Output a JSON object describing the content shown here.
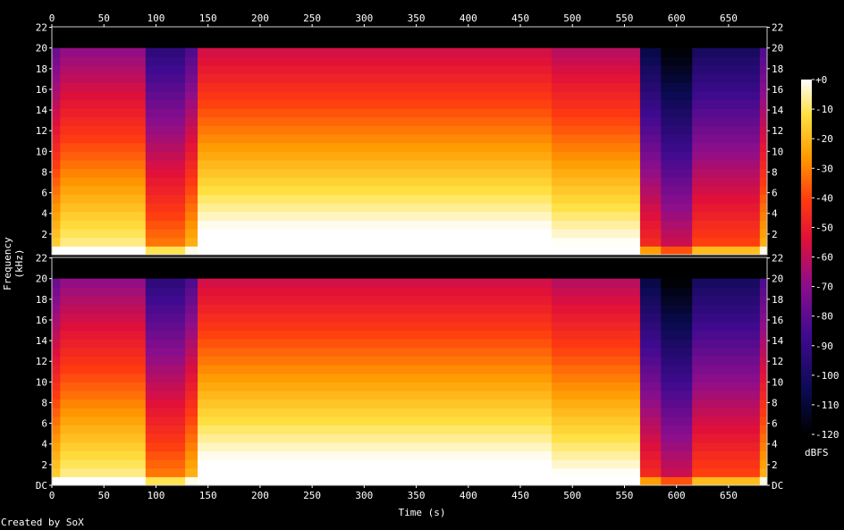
{
  "footer": "Created by SoX",
  "chart_data": {
    "type": "heatmap",
    "xlabel": "Time (s)",
    "ylabel": "Frequency (kHz)",
    "colorbar_label": "dBFS",
    "channels": 2,
    "xlim": [
      0,
      687
    ],
    "ylim": [
      0,
      22.05
    ],
    "x_ticks": [
      "0",
      "50",
      "100",
      "150",
      "200",
      "250",
      "300",
      "350",
      "400",
      "450",
      "500",
      "550",
      "600",
      "650"
    ],
    "y_ticks": [
      "DC",
      "2",
      "4",
      "6",
      "8",
      "10",
      "12",
      "14",
      "16",
      "18",
      "20",
      "22"
    ],
    "y_ticks_top_channel": [
      "2",
      "4",
      "6",
      "8",
      "10",
      "12",
      "14",
      "16",
      "18",
      "20",
      "22"
    ],
    "colorbar_ticks": [
      "+0",
      "-10",
      "-20",
      "-30",
      "-40",
      "-50",
      "-60",
      "-70",
      "-80",
      "-90",
      "-100",
      "-110",
      "-120"
    ],
    "colorbar_range": [
      -120,
      0
    ],
    "spectral_cutoff_khz": 20,
    "segments": [
      {
        "start": 0,
        "end": 8,
        "level": 0.55
      },
      {
        "start": 8,
        "end": 90,
        "level": 0.62
      },
      {
        "start": 90,
        "end": 128,
        "level": 0.42
      },
      {
        "start": 128,
        "end": 140,
        "level": 0.5
      },
      {
        "start": 140,
        "end": 480,
        "level": 0.72
      },
      {
        "start": 480,
        "end": 565,
        "level": 0.68
      },
      {
        "start": 565,
        "end": 585,
        "level": 0.3
      },
      {
        "start": 585,
        "end": 615,
        "level": 0.2
      },
      {
        "start": 615,
        "end": 680,
        "level": 0.35
      },
      {
        "start": 680,
        "end": 687,
        "level": 0.5
      }
    ]
  }
}
